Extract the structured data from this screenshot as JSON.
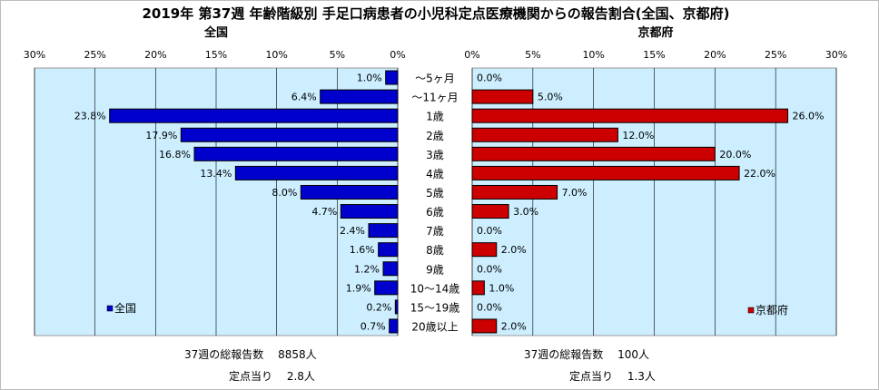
{
  "title": "2019年 第37週 年齢階級別 手足口病患者の小児科定点医療機関からの報告割合(全国、京都府)",
  "chart_data": {
    "type": "bar",
    "orientation": "horizontal",
    "layout": "butterfly",
    "categories": [
      "～5ヶ月",
      "～11ヶ月",
      "1歳",
      "2歳",
      "3歳",
      "4歳",
      "5歳",
      "6歳",
      "7歳",
      "8歳",
      "9歳",
      "10～14歳",
      "15～19歳",
      "20歳以上"
    ],
    "panels": [
      {
        "subtitle": "全国",
        "direction": "reversed",
        "xlim": [
          0,
          30
        ],
        "ticks": [
          "0%",
          "5%",
          "10%",
          "15%",
          "20%",
          "25%",
          "30%"
        ],
        "series": [
          {
            "name": "全国",
            "color": "#0000cc",
            "values": [
              1.0,
              6.4,
              23.8,
              17.9,
              16.8,
              13.4,
              8.0,
              4.7,
              2.4,
              1.6,
              1.2,
              1.9,
              0.2,
              0.7
            ],
            "labels": [
              "1.0%",
              "6.4%",
              "23.8%",
              "17.9%",
              "16.8%",
              "13.4%",
              "8.0%",
              "4.7%",
              "2.4%",
              "1.6%",
              "1.2%",
              "1.9%",
              "0.2%",
              "0.7%"
            ]
          }
        ],
        "legend_position": "bottom-left"
      },
      {
        "subtitle": "京都府",
        "direction": "normal",
        "xlim": [
          0,
          30
        ],
        "ticks": [
          "0%",
          "5%",
          "10%",
          "15%",
          "20%",
          "25%",
          "30%"
        ],
        "series": [
          {
            "name": "京都府",
            "color": "#cc0000",
            "values": [
              0.0,
              5.0,
              26.0,
              12.0,
              20.0,
              22.0,
              7.0,
              3.0,
              0.0,
              2.0,
              0.0,
              1.0,
              0.0,
              2.0
            ],
            "labels": [
              "0.0%",
              "5.0%",
              "26.0%",
              "12.0%",
              "20.0%",
              "22.0%",
              "7.0%",
              "3.0%",
              "0.0%",
              "2.0%",
              "0.0%",
              "1.0%",
              "0.0%",
              "2.0%"
            ]
          }
        ],
        "legend_position": "bottom-right"
      }
    ],
    "grid": true,
    "plot_background": "#cceeff"
  },
  "footer": {
    "national": {
      "total": "37週の総報告数　 8858人",
      "per_point": "定点当り　 2.8人"
    },
    "kyoto": {
      "total": "37週の総報告数　 100人",
      "per_point": "定点当り　 1.3人"
    }
  }
}
